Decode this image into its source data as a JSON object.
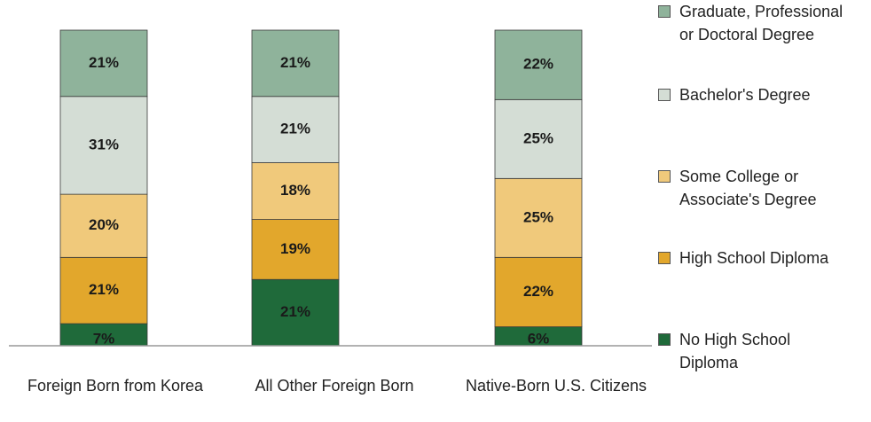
{
  "chart_data": {
    "type": "stacked_bar",
    "categories": [
      "Foreign Born from Korea",
      "All Other Foreign Born",
      "Native-Born U.S. Citizens"
    ],
    "series": [
      {
        "name": "No High School Diploma",
        "color": "#1f6a3a",
        "values": [
          7,
          21,
          6
        ],
        "value_labels": [
          "7%",
          "21%",
          "6%"
        ]
      },
      {
        "name": "High School Diploma",
        "color": "#e2a72c",
        "values": [
          21,
          19,
          22
        ],
        "value_labels": [
          "21%",
          "19%",
          "22%"
        ]
      },
      {
        "name": "Some College or Associate's Degree",
        "color": "#f0c97b",
        "values": [
          20,
          18,
          25
        ],
        "value_labels": [
          "20%",
          "18%",
          "25%"
        ]
      },
      {
        "name": "Bachelor's Degree",
        "color": "#d4ddd5",
        "values": [
          31,
          21,
          25
        ],
        "value_labels": [
          "31%",
          "21%",
          "25%"
        ]
      },
      {
        "name": "Graduate, Professional or Doctoral Degree",
        "color": "#8fb39b",
        "values": [
          21,
          21,
          22
        ],
        "value_labels": [
          "21%",
          "21%",
          "22%"
        ]
      }
    ],
    "legend": "right"
  }
}
